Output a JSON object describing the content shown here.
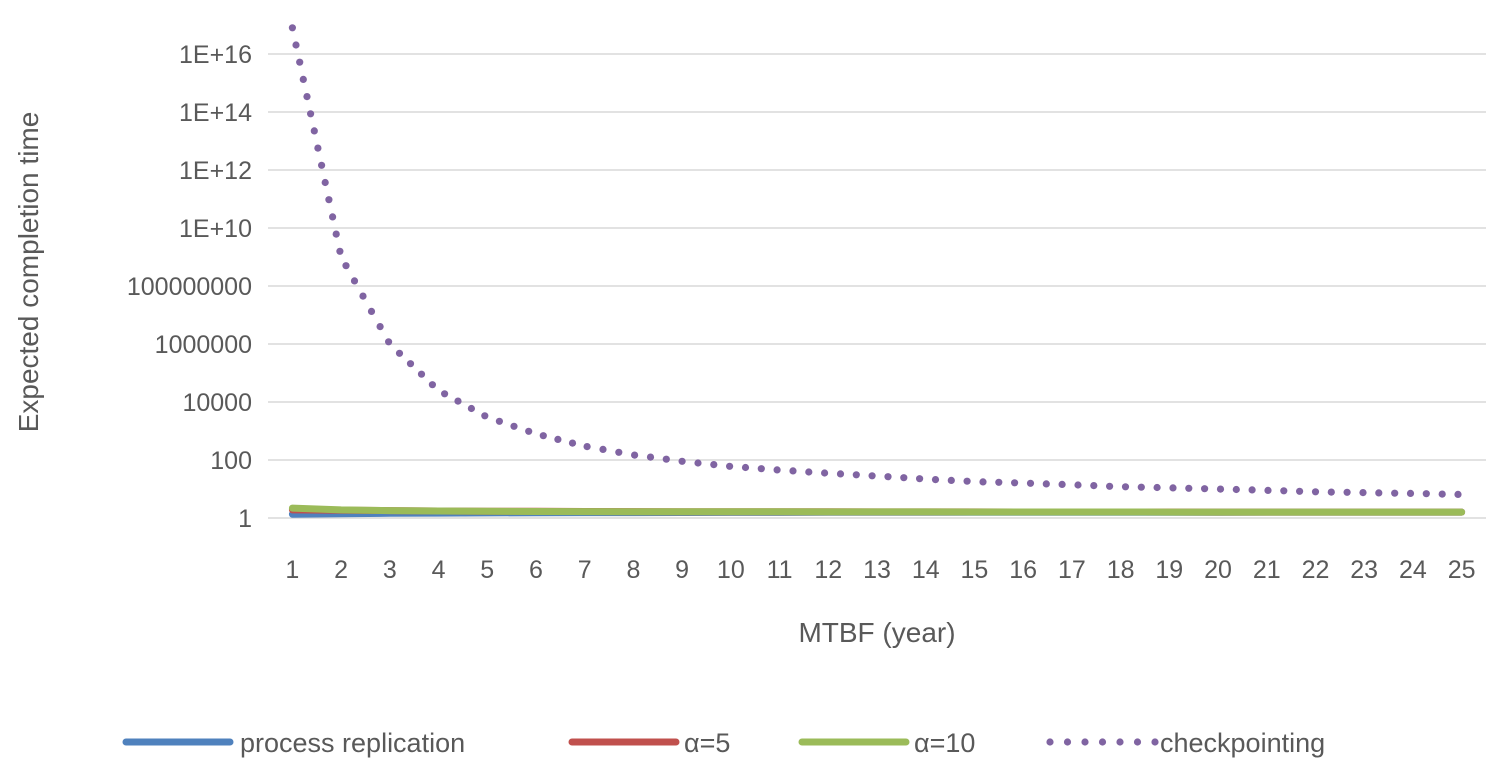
{
  "chart_data": {
    "type": "line",
    "xlabel": "MTBF (year)",
    "ylabel": "Expected completion time",
    "y_scale": "log",
    "ylim": [
      1,
      1e+16
    ],
    "y_ticks": [
      {
        "value": 1,
        "label": "1"
      },
      {
        "value": 100,
        "label": "100"
      },
      {
        "value": 10000,
        "label": "10000"
      },
      {
        "value": 1000000,
        "label": "1000000"
      },
      {
        "value": 100000000,
        "label": "100000000"
      },
      {
        "value": 10000000000,
        "label": "1E+10"
      },
      {
        "value": 1000000000000,
        "label": "1E+12"
      },
      {
        "value": 100000000000000,
        "label": "1E+14"
      },
      {
        "value": 10000000000000000,
        "label": "1E+16"
      }
    ],
    "categories": [
      "1",
      "2",
      "3",
      "4",
      "5",
      "6",
      "7",
      "8",
      "9",
      "10",
      "11",
      "12",
      "13",
      "14",
      "15",
      "16",
      "17",
      "18",
      "19",
      "20",
      "21",
      "22",
      "23",
      "24",
      "25"
    ],
    "grid": "horizontal",
    "legend_position": "bottom",
    "series": [
      {
        "name": "process replication",
        "color": "#4f81bd",
        "style": "solid",
        "values": [
          1.35,
          1.4,
          1.45,
          1.48,
          1.5,
          1.52,
          1.53,
          1.54,
          1.55,
          1.56,
          1.56,
          1.57,
          1.57,
          1.58,
          1.58,
          1.58,
          1.59,
          1.59,
          1.59,
          1.59,
          1.6,
          1.6,
          1.6,
          1.6,
          1.6
        ]
      },
      {
        "name": "α=5",
        "color": "#c0504d",
        "style": "solid",
        "values": [
          1.9,
          1.85,
          1.8,
          1.75,
          1.72,
          1.7,
          1.68,
          1.66,
          1.65,
          1.64,
          1.63,
          1.63,
          1.62,
          1.62,
          1.62,
          1.61,
          1.61,
          1.61,
          1.61,
          1.6,
          1.6,
          1.6,
          1.6,
          1.6,
          1.6
        ]
      },
      {
        "name": "α=10",
        "color": "#9bbb59",
        "style": "solid",
        "values": [
          2.2,
          1.9,
          1.8,
          1.74,
          1.7,
          1.68,
          1.66,
          1.65,
          1.64,
          1.63,
          1.63,
          1.62,
          1.62,
          1.62,
          1.61,
          1.61,
          1.61,
          1.61,
          1.6,
          1.6,
          1.6,
          1.6,
          1.6,
          1.6,
          1.6
        ]
      },
      {
        "name": "checkpointing",
        "color": "#8064a2",
        "style": "dotted",
        "values": [
          8e+16,
          1000000000.0,
          1000000,
          25000,
          3000,
          800,
          300,
          150,
          90,
          60,
          45,
          35,
          28,
          22,
          18,
          16,
          14,
          12,
          11,
          10,
          9,
          8,
          7.5,
          7,
          6.5
        ]
      }
    ]
  }
}
